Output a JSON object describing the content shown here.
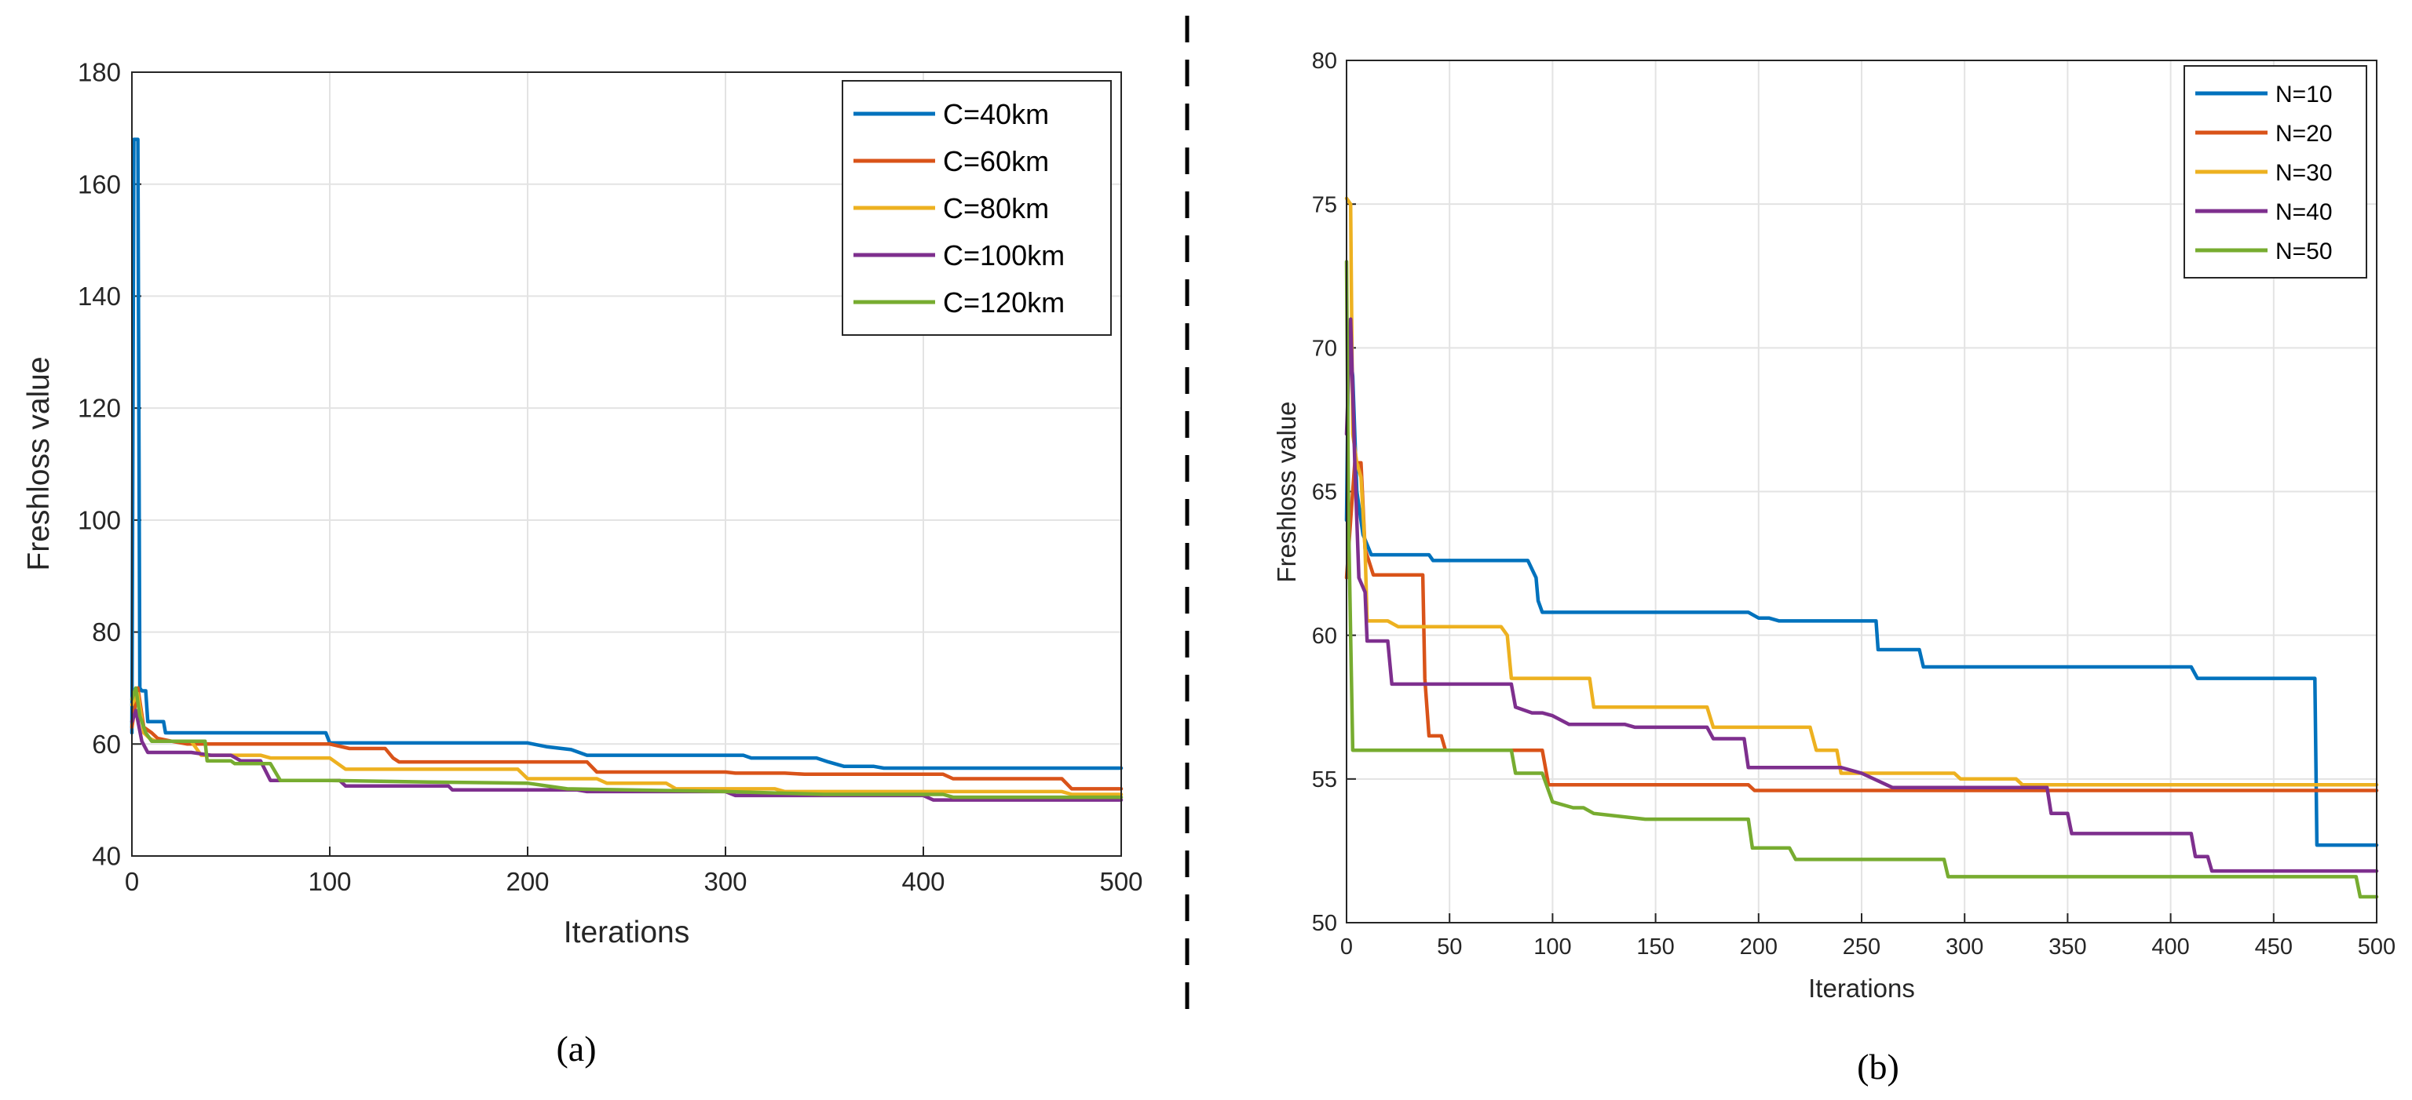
{
  "chart_data": [
    {
      "type": "line",
      "panel": "a",
      "caption": "(a)",
      "xlabel": "Iterations",
      "ylabel": "Freshloss value",
      "xlim": [
        0,
        500
      ],
      "ylim": [
        40,
        180
      ],
      "xticks": [
        "0",
        "100",
        "200",
        "300",
        "400",
        "500"
      ],
      "yticks": [
        "40",
        "60",
        "80",
        "100",
        "120",
        "140",
        "160",
        "180"
      ],
      "grid": true,
      "legend_position": "top-right",
      "series": [
        {
          "name": "C=40km",
          "color": "#0072BD",
          "points": [
            [
              0,
              62
            ],
            [
              1,
              168
            ],
            [
              3,
              168
            ],
            [
              4,
              70
            ],
            [
              5,
              69.5
            ],
            [
              7,
              69.5
            ],
            [
              8,
              64
            ],
            [
              16,
              64
            ],
            [
              17,
              62
            ],
            [
              98,
              62
            ],
            [
              100,
              60.2
            ],
            [
              200,
              60.2
            ],
            [
              210,
              59.5
            ],
            [
              222,
              59
            ],
            [
              230,
              58
            ],
            [
              309,
              58
            ],
            [
              313,
              57.5
            ],
            [
              346,
              57.5
            ],
            [
              352,
              56.8
            ],
            [
              360,
              56
            ],
            [
              375,
              56
            ],
            [
              380,
              55.7
            ],
            [
              500,
              55.7
            ]
          ]
        },
        {
          "name": "C=60km",
          "color": "#D95319",
          "points": [
            [
              0,
              63
            ],
            [
              3,
              70
            ],
            [
              6,
              63
            ],
            [
              10,
              62
            ],
            [
              13,
              61
            ],
            [
              20,
              60.5
            ],
            [
              28,
              60
            ],
            [
              100,
              60
            ],
            [
              110,
              59.2
            ],
            [
              128,
              59.2
            ],
            [
              132,
              57.5
            ],
            [
              135,
              56.8
            ],
            [
              230,
              56.8
            ],
            [
              235,
              55
            ],
            [
              300,
              55
            ],
            [
              305,
              54.8
            ],
            [
              330,
              54.8
            ],
            [
              340,
              54.6
            ],
            [
              410,
              54.6
            ],
            [
              415,
              53.8
            ],
            [
              470,
              53.8
            ],
            [
              475,
              52
            ],
            [
              500,
              52
            ]
          ]
        },
        {
          "name": "C=80km",
          "color": "#EDB120",
          "points": [
            [
              0,
              67
            ],
            [
              3,
              69
            ],
            [
              6,
              62
            ],
            [
              9,
              61
            ],
            [
              12,
              60.5
            ],
            [
              30,
              60.5
            ],
            [
              35,
              58
            ],
            [
              65,
              58
            ],
            [
              70,
              57.5
            ],
            [
              100,
              57.5
            ],
            [
              108,
              55.5
            ],
            [
              150,
              55.5
            ],
            [
              195,
              55.5
            ],
            [
              200,
              53.8
            ],
            [
              235,
              53.8
            ],
            [
              240,
              53
            ],
            [
              270,
              53
            ],
            [
              275,
              52
            ],
            [
              325,
              52
            ],
            [
              330,
              51.5
            ],
            [
              470,
              51.5
            ],
            [
              475,
              51
            ],
            [
              500,
              51
            ]
          ]
        },
        {
          "name": "C=100km",
          "color": "#7E2F8E",
          "points": [
            [
              0,
              64
            ],
            [
              2,
              66
            ],
            [
              5,
              60.5
            ],
            [
              8,
              58.5
            ],
            [
              30,
              58.5
            ],
            [
              40,
              58
            ],
            [
              50,
              58
            ],
            [
              55,
              57
            ],
            [
              65,
              57
            ],
            [
              70,
              53.5
            ],
            [
              105,
              53.5
            ],
            [
              108,
              52.5
            ],
            [
              160,
              52.5
            ],
            [
              162,
              51.8
            ],
            [
              225,
              51.8
            ],
            [
              230,
              51.5
            ],
            [
              300,
              51.5
            ],
            [
              305,
              50.8
            ],
            [
              400,
              50.8
            ],
            [
              405,
              50
            ],
            [
              500,
              50
            ]
          ]
        },
        {
          "name": "C=120km",
          "color": "#77AC30",
          "points": [
            [
              0,
              68
            ],
            [
              2,
              70
            ],
            [
              4,
              65
            ],
            [
              7,
              62
            ],
            [
              10,
              60.5
            ],
            [
              37,
              60.5
            ],
            [
              38,
              57
            ],
            [
              50,
              57
            ],
            [
              52,
              56.5
            ],
            [
              70,
              56.5
            ],
            [
              75,
              53.5
            ],
            [
              100,
              53.5
            ],
            [
              150,
              53.2
            ],
            [
              200,
              53
            ],
            [
              220,
              52
            ],
            [
              300,
              51.5
            ],
            [
              350,
              51
            ],
            [
              410,
              51
            ],
            [
              415,
              50.5
            ],
            [
              500,
              50.5
            ]
          ]
        }
      ]
    },
    {
      "type": "line",
      "panel": "b",
      "caption": "(b)",
      "xlabel": "Iterations",
      "ylabel": "Freshloss value",
      "xlim": [
        0,
        500
      ],
      "ylim": [
        50,
        80
      ],
      "xticks": [
        "0",
        "50",
        "100",
        "150",
        "200",
        "250",
        "300",
        "350",
        "400",
        "450",
        "500"
      ],
      "yticks": [
        "50",
        "55",
        "60",
        "65",
        "70",
        "75",
        "80"
      ],
      "grid": true,
      "legend_position": "top-right",
      "series": [
        {
          "name": "N=10",
          "color": "#0072BD",
          "points": [
            [
              0,
              64
            ],
            [
              1,
              70.5
            ],
            [
              3,
              69
            ],
            [
              5,
              65
            ],
            [
              8,
              63.5
            ],
            [
              12,
              62.8
            ],
            [
              40,
              62.8
            ],
            [
              42,
              62.6
            ],
            [
              88,
              62.6
            ],
            [
              92,
              62
            ],
            [
              93,
              61.2
            ],
            [
              95,
              60.8
            ],
            [
              195,
              60.8
            ],
            [
              200,
              60.6
            ],
            [
              205,
              60.6
            ],
            [
              210,
              60.5
            ],
            [
              257,
              60.5
            ],
            [
              258,
              59.5
            ],
            [
              278,
              59.5
            ],
            [
              280,
              58.9
            ],
            [
              410,
              58.9
            ],
            [
              413,
              58.5
            ],
            [
              470,
              58.5
            ],
            [
              471,
              52.7
            ],
            [
              500,
              52.7
            ]
          ]
        },
        {
          "name": "N=20",
          "color": "#D95319",
          "points": [
            [
              0,
              62
            ],
            [
              2,
              64
            ],
            [
              4,
              66
            ],
            [
              7,
              66
            ],
            [
              9,
              63
            ],
            [
              13,
              62.1
            ],
            [
              37,
              62.1
            ],
            [
              38,
              58.5
            ],
            [
              40,
              56.5
            ],
            [
              46,
              56.5
            ],
            [
              48,
              56
            ],
            [
              83,
              56
            ],
            [
              85,
              56
            ],
            [
              95,
              56
            ],
            [
              98,
              54.8
            ],
            [
              195,
              54.8
            ],
            [
              198,
              54.6
            ],
            [
              500,
              54.6
            ]
          ]
        },
        {
          "name": "N=30",
          "color": "#EDB120",
          "points": [
            [
              0,
              75.2
            ],
            [
              2,
              75
            ],
            [
              3,
              67
            ],
            [
              5,
              66
            ],
            [
              7,
              65.5
            ],
            [
              9,
              63
            ],
            [
              10,
              60.5
            ],
            [
              20,
              60.5
            ],
            [
              25,
              60.3
            ],
            [
              75,
              60.3
            ],
            [
              78,
              60
            ],
            [
              80,
              58.5
            ],
            [
              118,
              58.5
            ],
            [
              120,
              57.5
            ],
            [
              175,
              57.5
            ],
            [
              178,
              56.8
            ],
            [
              225,
              56.8
            ],
            [
              228,
              56
            ],
            [
              238,
              56
            ],
            [
              240,
              55.2
            ],
            [
              295,
              55.2
            ],
            [
              298,
              55
            ],
            [
              325,
              55
            ],
            [
              328,
              54.8
            ],
            [
              500,
              54.8
            ]
          ]
        },
        {
          "name": "N=40",
          "color": "#7E2F8E",
          "points": [
            [
              0,
              67
            ],
            [
              2,
              71
            ],
            [
              4,
              66
            ],
            [
              6,
              62
            ],
            [
              9,
              61.5
            ],
            [
              10,
              59.8
            ],
            [
              20,
              59.8
            ],
            [
              22,
              58.3
            ],
            [
              80,
              58.3
            ],
            [
              82,
              57.5
            ],
            [
              90,
              57.3
            ],
            [
              95,
              57.3
            ],
            [
              100,
              57.2
            ],
            [
              108,
              56.9
            ],
            [
              135,
              56.9
            ],
            [
              140,
              56.8
            ],
            [
              175,
              56.8
            ],
            [
              178,
              56.4
            ],
            [
              193,
              56.4
            ],
            [
              195,
              55.4
            ],
            [
              240,
              55.4
            ],
            [
              250,
              55.2
            ],
            [
              265,
              54.7
            ],
            [
              340,
              54.7
            ],
            [
              342,
              53.8
            ],
            [
              350,
              53.8
            ],
            [
              352,
              53.1
            ],
            [
              410,
              53.1
            ],
            [
              412,
              52.3
            ],
            [
              418,
              52.3
            ],
            [
              420,
              51.8
            ],
            [
              500,
              51.8
            ]
          ]
        },
        {
          "name": "N=50",
          "color": "#77AC30",
          "points": [
            [
              0,
              73
            ],
            [
              1,
              64
            ],
            [
              2,
              60
            ],
            [
              3,
              56
            ],
            [
              6,
              56
            ],
            [
              75,
              56
            ],
            [
              80,
              56
            ],
            [
              82,
              55.2
            ],
            [
              95,
              55.2
            ],
            [
              100,
              54.2
            ],
            [
              110,
              54
            ],
            [
              115,
              54
            ],
            [
              120,
              53.8
            ],
            [
              145,
              53.6
            ],
            [
              195,
              53.6
            ],
            [
              197,
              52.6
            ],
            [
              215,
              52.6
            ],
            [
              218,
              52.2
            ],
            [
              290,
              52.2
            ],
            [
              292,
              51.6
            ],
            [
              370,
              51.6
            ],
            [
              400,
              51.6
            ],
            [
              490,
              51.6
            ],
            [
              492,
              50.9
            ],
            [
              500,
              50.9
            ]
          ]
        }
      ]
    }
  ]
}
